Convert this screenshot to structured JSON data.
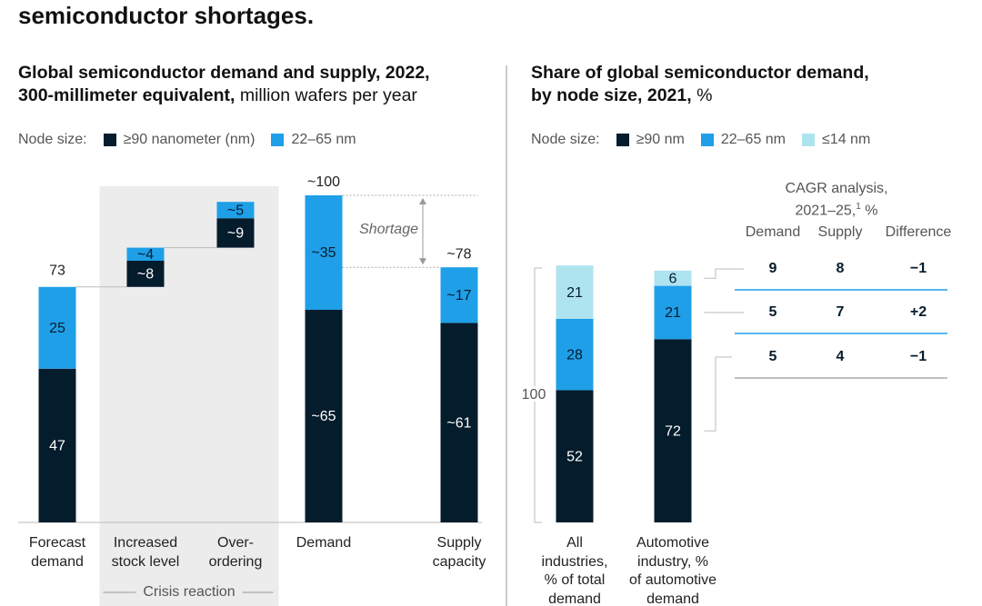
{
  "header": {
    "title": "semiconductor shortages."
  },
  "chart_data": [
    {
      "type": "waterfall",
      "title": "Global semiconductor demand and supply, 2022,\n300-millimeter equivalent,",
      "units": "million wafers per year",
      "legend_title": "Node size:",
      "categories": [
        "Forecast\ndemand",
        "Increased\nstock level",
        "Over-\nordering",
        "Demand",
        "Supply\ncapacity"
      ],
      "series": [
        {
          "name": "≥90 nanometer (nm)",
          "color": "#051c2c",
          "values": [
            47,
            8,
            9,
            65,
            61
          ],
          "value_labels": [
            "47",
            "~8",
            "~9",
            "~65",
            "~61"
          ]
        },
        {
          "name": "22–65 nm",
          "color": "#1f9fe8",
          "values": [
            25,
            4,
            5,
            35,
            17
          ],
          "value_labels": [
            "25",
            "~4",
            "~5",
            "~35",
            "~17"
          ]
        }
      ],
      "totals": [
        73,
        null,
        null,
        100,
        78
      ],
      "total_labels": [
        "73",
        null,
        null,
        "~100",
        "~78"
      ],
      "group_label": "Crisis reaction",
      "annotation": "Shortage",
      "ylim": [
        0,
        100
      ]
    },
    {
      "type": "stacked_bar",
      "title": "Share of global semiconductor demand,\nby node size, 2021,",
      "units": "%",
      "legend_title": "Node size:",
      "categories": [
        "All\nindustries,\n% of total\ndemand",
        "Automotive\nindustry, %\nof automotive\ndemand"
      ],
      "series": [
        {
          "name": "≥90 nm",
          "color": "#051c2c",
          "values": [
            52,
            72
          ]
        },
        {
          "name": "22–65 nm",
          "color": "#1f9fe8",
          "values": [
            28,
            21
          ]
        },
        {
          "name": "≤14 nm",
          "color": "#aee3f0",
          "values": [
            21,
            6
          ]
        }
      ],
      "total": 100,
      "ylim": [
        0,
        100
      ]
    }
  ],
  "table": {
    "title": "CAGR analysis,\n2021–25,",
    "footnote": "1",
    "units": "%",
    "columns": [
      "Demand",
      "Supply",
      "Difference"
    ],
    "rows": [
      [
        "9",
        "8",
        "−1"
      ],
      [
        "5",
        "7",
        "+2"
      ],
      [
        "5",
        "4",
        "−1"
      ]
    ]
  }
}
